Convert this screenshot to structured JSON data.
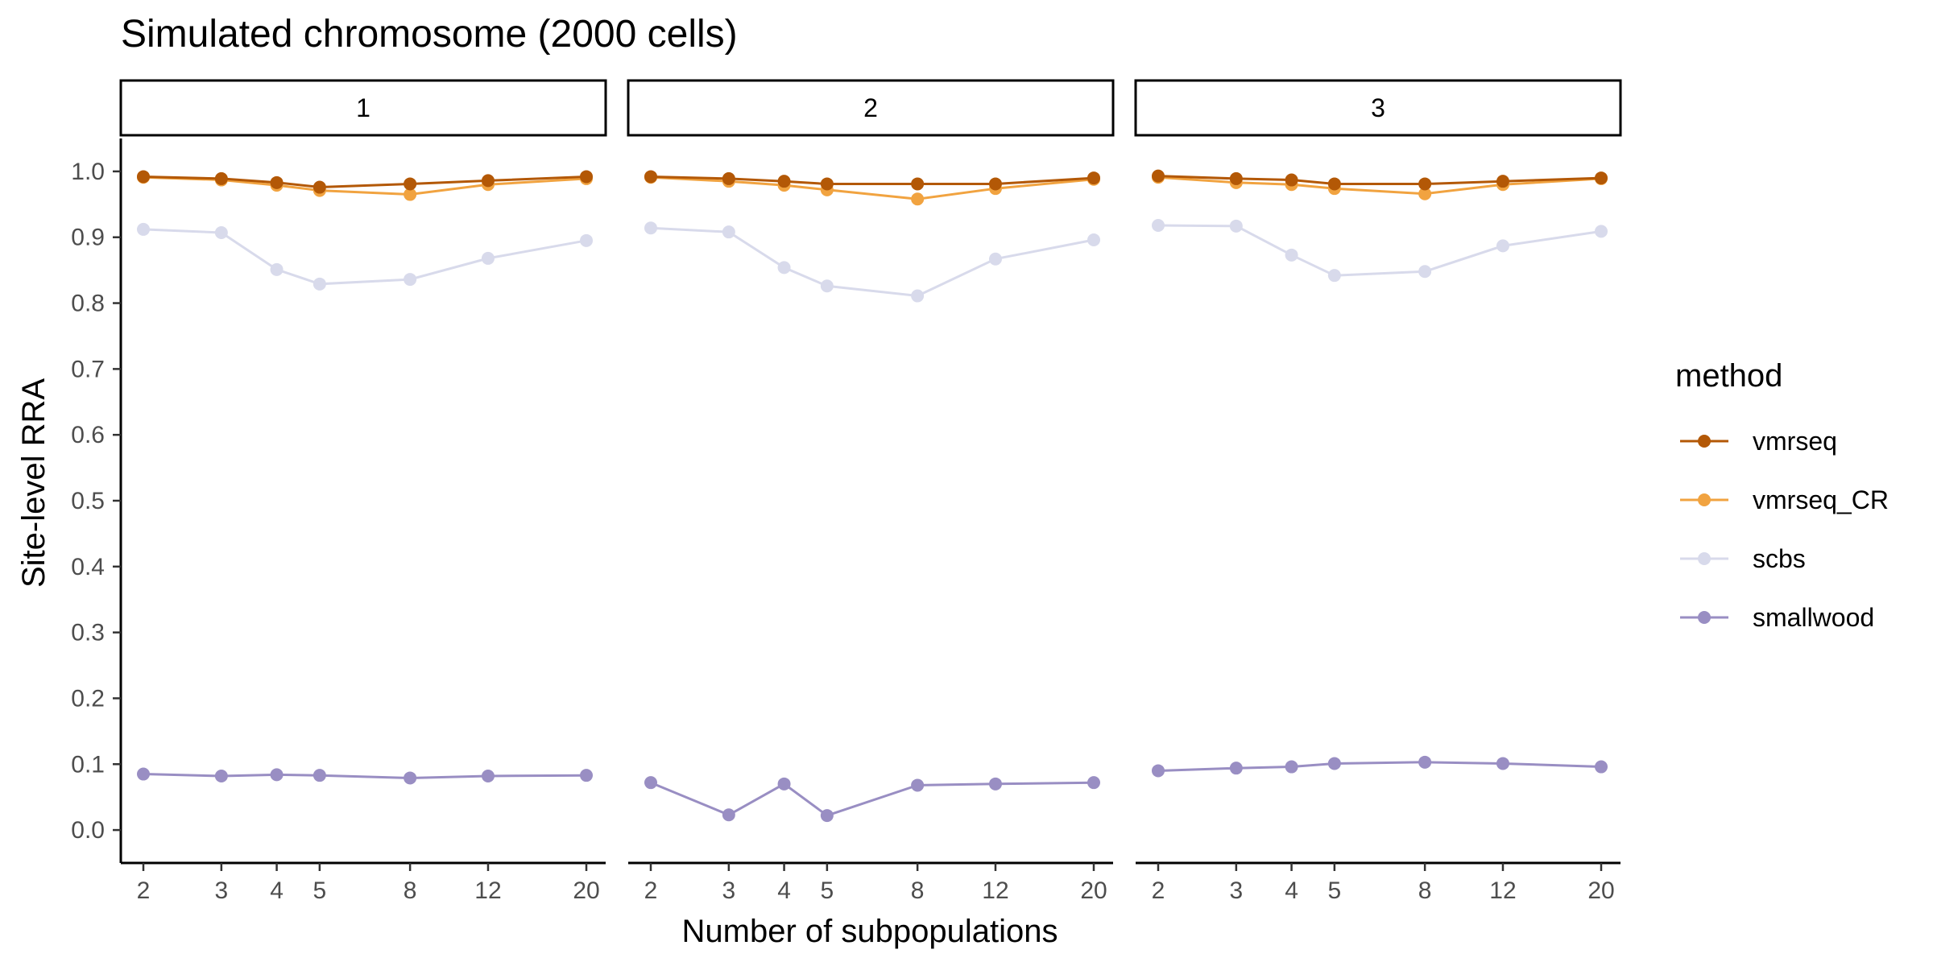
{
  "chart_data": {
    "type": "line",
    "title": "Simulated chromosome (2000 cells)",
    "xlabel": "Number of subpopulations",
    "ylabel": "Site-level RRA",
    "x": [
      2,
      3,
      4,
      5,
      8,
      12,
      20
    ],
    "x_tick_labels": [
      "2",
      "3",
      "4",
      "5",
      "8",
      "12",
      "20"
    ],
    "x_scale": "log",
    "ylim": [
      -0.05,
      1.05
    ],
    "y_ticks": [
      0.0,
      0.1,
      0.2,
      0.3,
      0.4,
      0.5,
      0.6,
      0.7,
      0.8,
      0.9,
      1.0
    ],
    "y_tick_labels": [
      "0.0",
      "0.1",
      "0.2",
      "0.3",
      "0.4",
      "0.5",
      "0.6",
      "0.7",
      "0.8",
      "0.9",
      "1.0"
    ],
    "legend": {
      "title": "method",
      "position": "right"
    },
    "series_styles": [
      {
        "name": "vmrseq",
        "color": "#b35806"
      },
      {
        "name": "vmrseq_CR",
        "color": "#f1a340"
      },
      {
        "name": "scbs",
        "color": "#d8daeb"
      },
      {
        "name": "smallwood",
        "color": "#998ec3"
      }
    ],
    "facets": [
      {
        "label": "1",
        "series": [
          {
            "name": "vmrseq",
            "values": [
              0.992,
              0.989,
              0.983,
              0.976,
              0.981,
              0.986,
              0.992
            ]
          },
          {
            "name": "vmrseq_CR",
            "values": [
              0.991,
              0.987,
              0.979,
              0.971,
              0.965,
              0.98,
              0.989
            ]
          },
          {
            "name": "scbs",
            "values": [
              0.912,
              0.907,
              0.851,
              0.829,
              0.836,
              0.868,
              0.895
            ]
          },
          {
            "name": "smallwood",
            "values": [
              0.085,
              0.082,
              0.084,
              0.083,
              0.079,
              0.082,
              0.083
            ]
          }
        ]
      },
      {
        "label": "2",
        "series": [
          {
            "name": "vmrseq",
            "values": [
              0.992,
              0.989,
              0.985,
              0.981,
              0.981,
              0.981,
              0.99
            ]
          },
          {
            "name": "vmrseq_CR",
            "values": [
              0.991,
              0.985,
              0.979,
              0.972,
              0.958,
              0.974,
              0.988
            ]
          },
          {
            "name": "scbs",
            "values": [
              0.914,
              0.908,
              0.854,
              0.826,
              0.811,
              0.867,
              0.896
            ]
          },
          {
            "name": "smallwood",
            "values": [
              0.072,
              0.023,
              0.07,
              0.022,
              0.068,
              0.07,
              0.072
            ]
          }
        ]
      },
      {
        "label": "3",
        "series": [
          {
            "name": "vmrseq",
            "values": [
              0.993,
              0.989,
              0.987,
              0.981,
              0.981,
              0.985,
              0.99
            ]
          },
          {
            "name": "vmrseq_CR",
            "values": [
              0.991,
              0.983,
              0.98,
              0.974,
              0.966,
              0.98,
              0.989
            ]
          },
          {
            "name": "scbs",
            "values": [
              0.918,
              0.917,
              0.873,
              0.842,
              0.848,
              0.887,
              0.909
            ]
          },
          {
            "name": "smallwood",
            "values": [
              0.09,
              0.094,
              0.096,
              0.101,
              0.103,
              0.101,
              0.096
            ]
          }
        ]
      }
    ]
  }
}
